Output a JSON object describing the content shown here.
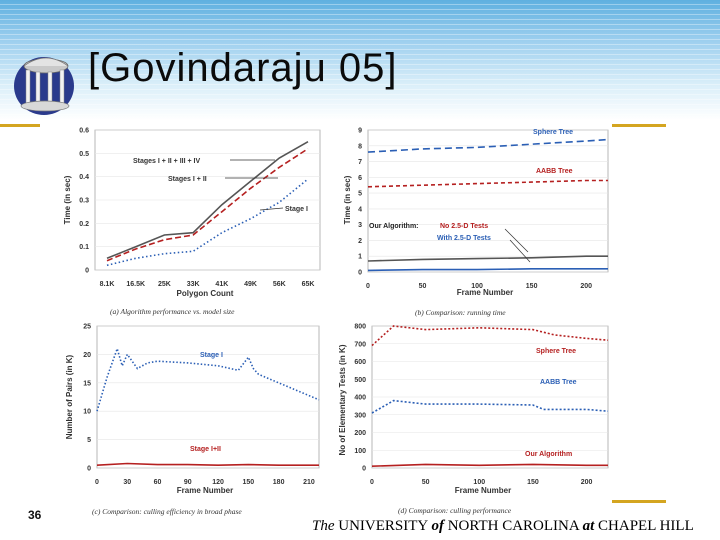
{
  "slide": {
    "title": "[Govindaraju 05]",
    "number": "36",
    "footer": {
      "the": "The",
      "university": " UNIVERSITY ",
      "of": "of",
      "nc": " NORTH CAROLINA ",
      "at": "at",
      "chapel": " CHAPEL HILL"
    }
  },
  "colors": {
    "gold": "#d4a520",
    "blue": "#2b5fb5",
    "red": "#b52020",
    "gray": "#555555"
  },
  "chart_data": [
    {
      "id": "a",
      "type": "line",
      "caption": "(a) Algorithm performance vs. model size",
      "xlabel": "Polygon Count",
      "ylabel": "Time (in sec)",
      "categories": [
        "8.1K",
        "16.5K",
        "25K",
        "33K",
        "41K",
        "49K",
        "56K",
        "65K"
      ],
      "ylim": [
        0,
        0.6
      ],
      "yticks": [
        "0",
        "0.1",
        "0.2",
        "0.3",
        "0.4",
        "0.5",
        "0.6"
      ],
      "series": [
        {
          "name": "Stages I + II + III + IV",
          "style": "solid",
          "values": [
            0.05,
            0.1,
            0.15,
            0.16,
            0.28,
            0.38,
            0.48,
            0.55
          ]
        },
        {
          "name": "Stages I + II",
          "style": "dash",
          "values": [
            0.04,
            0.09,
            0.13,
            0.15,
            0.25,
            0.35,
            0.44,
            0.52
          ]
        },
        {
          "name": "Stage I",
          "style": "dot",
          "values": [
            0.02,
            0.05,
            0.07,
            0.08,
            0.16,
            0.22,
            0.29,
            0.39
          ]
        }
      ]
    },
    {
      "id": "b",
      "type": "line",
      "caption": "(b) Comparison: running time",
      "xlabel": "Frame Number",
      "ylabel": "Time (in sec)",
      "xticks": [
        "0",
        "50",
        "100",
        "150",
        "200"
      ],
      "yticks": [
        "0",
        "1",
        "2",
        "3",
        "4",
        "5",
        "6",
        "7",
        "8",
        "9"
      ],
      "xlim": [
        0,
        220
      ],
      "ylim": [
        0,
        9
      ],
      "annot_main": "Our Algorithm:",
      "series": [
        {
          "name": "Sphere Tree",
          "x": [
            0,
            50,
            100,
            150,
            200,
            220
          ],
          "values": [
            7.6,
            7.8,
            7.9,
            8.1,
            8.3,
            8.4
          ]
        },
        {
          "name": "AABB Tree",
          "x": [
            0,
            50,
            100,
            150,
            200,
            220
          ],
          "values": [
            5.4,
            5.5,
            5.6,
            5.7,
            5.8,
            5.8
          ]
        },
        {
          "name": "No 2.5-D Tests",
          "x": [
            0,
            50,
            100,
            150,
            200,
            220
          ],
          "values": [
            0.7,
            0.8,
            0.85,
            0.9,
            1.0,
            1.0
          ]
        },
        {
          "name": "With 2.5-D Tests",
          "x": [
            0,
            50,
            100,
            150,
            200,
            220
          ],
          "values": [
            0.1,
            0.15,
            0.15,
            0.2,
            0.2,
            0.2
          ]
        }
      ]
    },
    {
      "id": "c",
      "type": "line",
      "caption": "(c) Comparison: culling efficiency in broad phase",
      "xlabel": "Frame Number",
      "ylabel": "Number of Pairs (in K)",
      "xticks": [
        "0",
        "30",
        "60",
        "90",
        "120",
        "150",
        "180",
        "210"
      ],
      "yticks": [
        "0",
        "5",
        "10",
        "15",
        "20",
        "25"
      ],
      "xlim": [
        0,
        220
      ],
      "ylim": [
        0,
        25
      ],
      "series": [
        {
          "name": "Stage I",
          "x": [
            0,
            10,
            20,
            25,
            30,
            40,
            50,
            60,
            90,
            120,
            140,
            150,
            155,
            160,
            180,
            200,
            220
          ],
          "values": [
            10,
            16,
            21,
            18,
            20,
            17.5,
            18.5,
            18.8,
            18.5,
            18,
            17.2,
            19.5,
            17.5,
            16.5,
            15,
            13.5,
            12
          ]
        },
        {
          "name": "Stage I+II",
          "x": [
            0,
            30,
            60,
            90,
            120,
            150,
            180,
            210,
            220
          ],
          "values": [
            0.5,
            0.8,
            0.6,
            0.6,
            0.5,
            0.6,
            0.5,
            0.5,
            0.5
          ]
        }
      ]
    },
    {
      "id": "d",
      "type": "line",
      "caption": "(d) Comparison: culling performance",
      "xlabel": "Frame Number",
      "ylabel": "No of Elementary Tests (in K)",
      "xticks": [
        "0",
        "50",
        "100",
        "150",
        "200"
      ],
      "yticks": [
        "0",
        "100",
        "200",
        "300",
        "400",
        "500",
        "600",
        "700",
        "800"
      ],
      "xlim": [
        0,
        220
      ],
      "ylim": [
        0,
        800
      ],
      "series": [
        {
          "name": "Sphere Tree",
          "x": [
            0,
            20,
            50,
            100,
            150,
            170,
            200,
            220
          ],
          "values": [
            690,
            800,
            780,
            790,
            780,
            750,
            730,
            720
          ]
        },
        {
          "name": "AABB Tree",
          "x": [
            0,
            20,
            50,
            100,
            150,
            160,
            200,
            220
          ],
          "values": [
            310,
            380,
            360,
            360,
            355,
            330,
            330,
            320
          ]
        },
        {
          "name": "Our Algorithm",
          "x": [
            0,
            50,
            100,
            150,
            200,
            220
          ],
          "values": [
            10,
            20,
            15,
            20,
            15,
            15
          ]
        }
      ]
    }
  ]
}
